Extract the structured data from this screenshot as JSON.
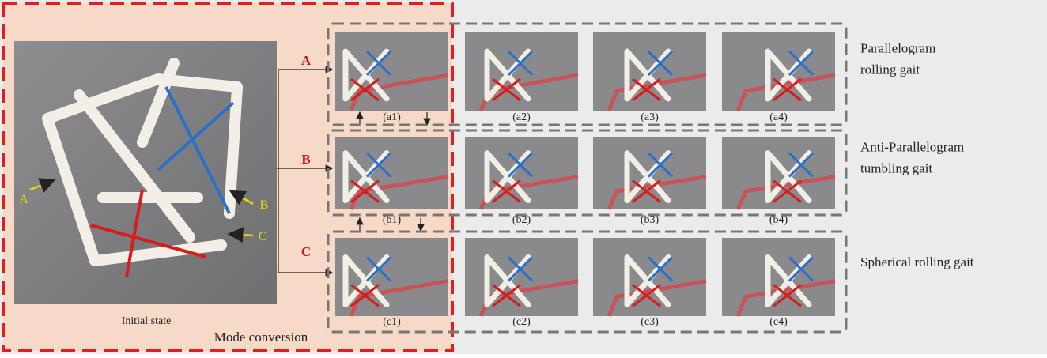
{
  "figure": {
    "initial_state": "Initial state",
    "mode_conversion": "Mode conversion",
    "photo_annotations": [
      "A",
      "B",
      "C"
    ],
    "modes": [
      {
        "letter": "A",
        "gait": [
          "Parallelogram",
          "rolling gait"
        ],
        "panels": [
          "(a1)",
          "(a2)",
          "(a3)",
          "(a4)"
        ]
      },
      {
        "letter": "B",
        "gait": [
          "Anti-Parallelogram",
          "tumbling gait"
        ],
        "panels": [
          "(b1)",
          "(b2)",
          "(b3)",
          "(b4)"
        ]
      },
      {
        "letter": "C",
        "gait": [
          "Spherical rolling gait"
        ],
        "panels": [
          "(c1)",
          "(c2)",
          "(c3)",
          "(c4)"
        ]
      }
    ]
  }
}
